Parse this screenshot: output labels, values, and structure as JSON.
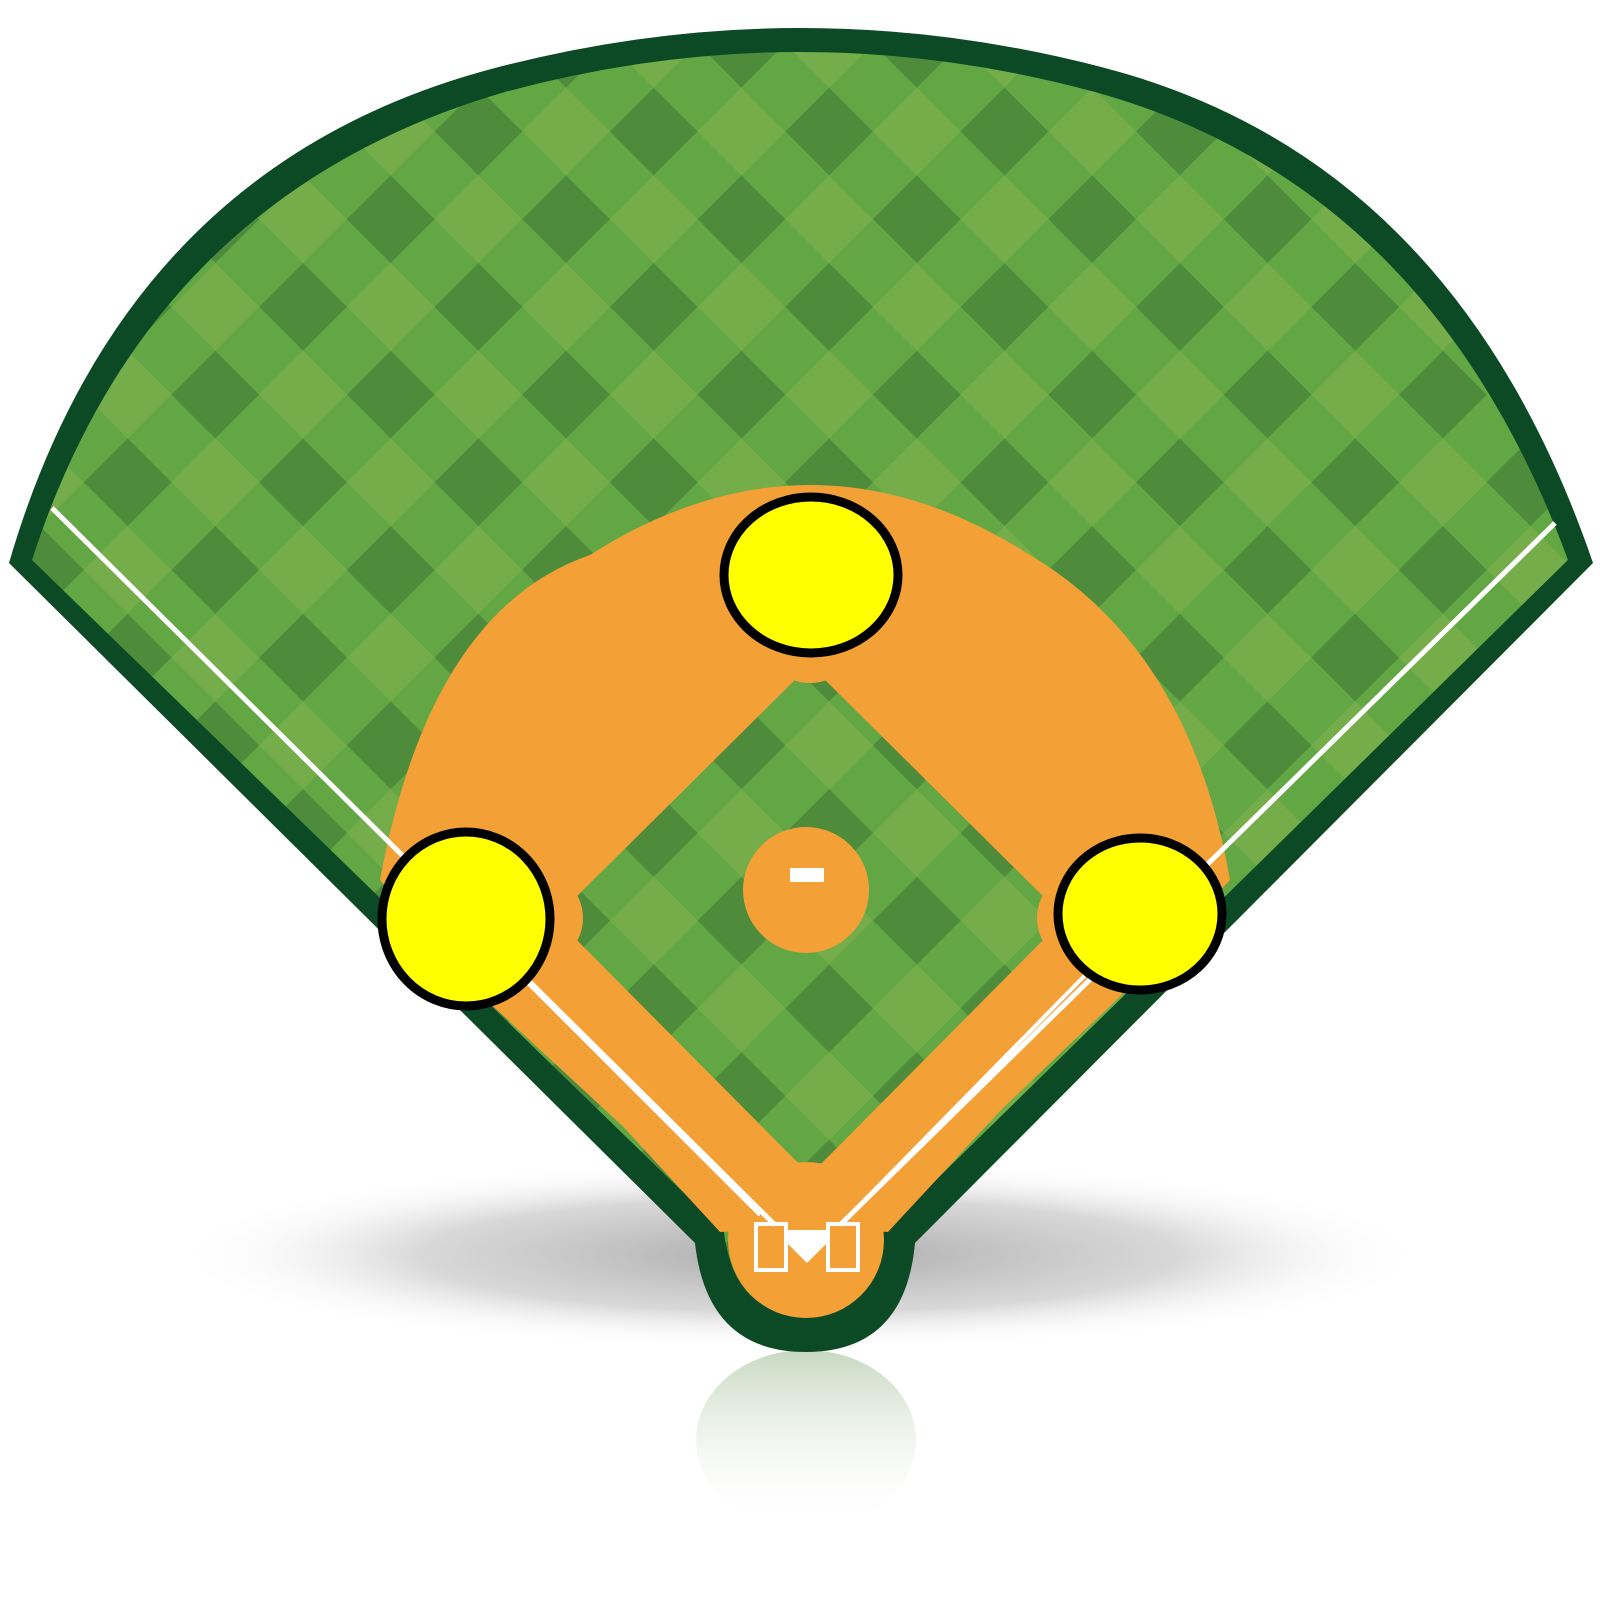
{
  "scene": {
    "subject": "baseball-field-diagram",
    "bases": [
      {
        "id": "second-base",
        "label": ""
      },
      {
        "id": "third-base",
        "label": ""
      },
      {
        "id": "first-base",
        "label": ""
      }
    ]
  },
  "colors": {
    "page_background": "#ffffff",
    "outline": "#0b4a25",
    "grass_base": "#63a745",
    "grass_dark": "#4e8c3c",
    "grass_light": "#74ad4a",
    "grass_mid": "#5fa843",
    "dirt": "#f3a036",
    "foul_line": "#ffffff",
    "base_fill": "#ffff00",
    "base_stroke": "#000000",
    "shadow": "#9a9a9a"
  },
  "icons": {
    "home_plate": "home-plate-icon",
    "pitching_rubber": "pitching-rubber-icon",
    "batters_box": "batters-box-icon"
  }
}
